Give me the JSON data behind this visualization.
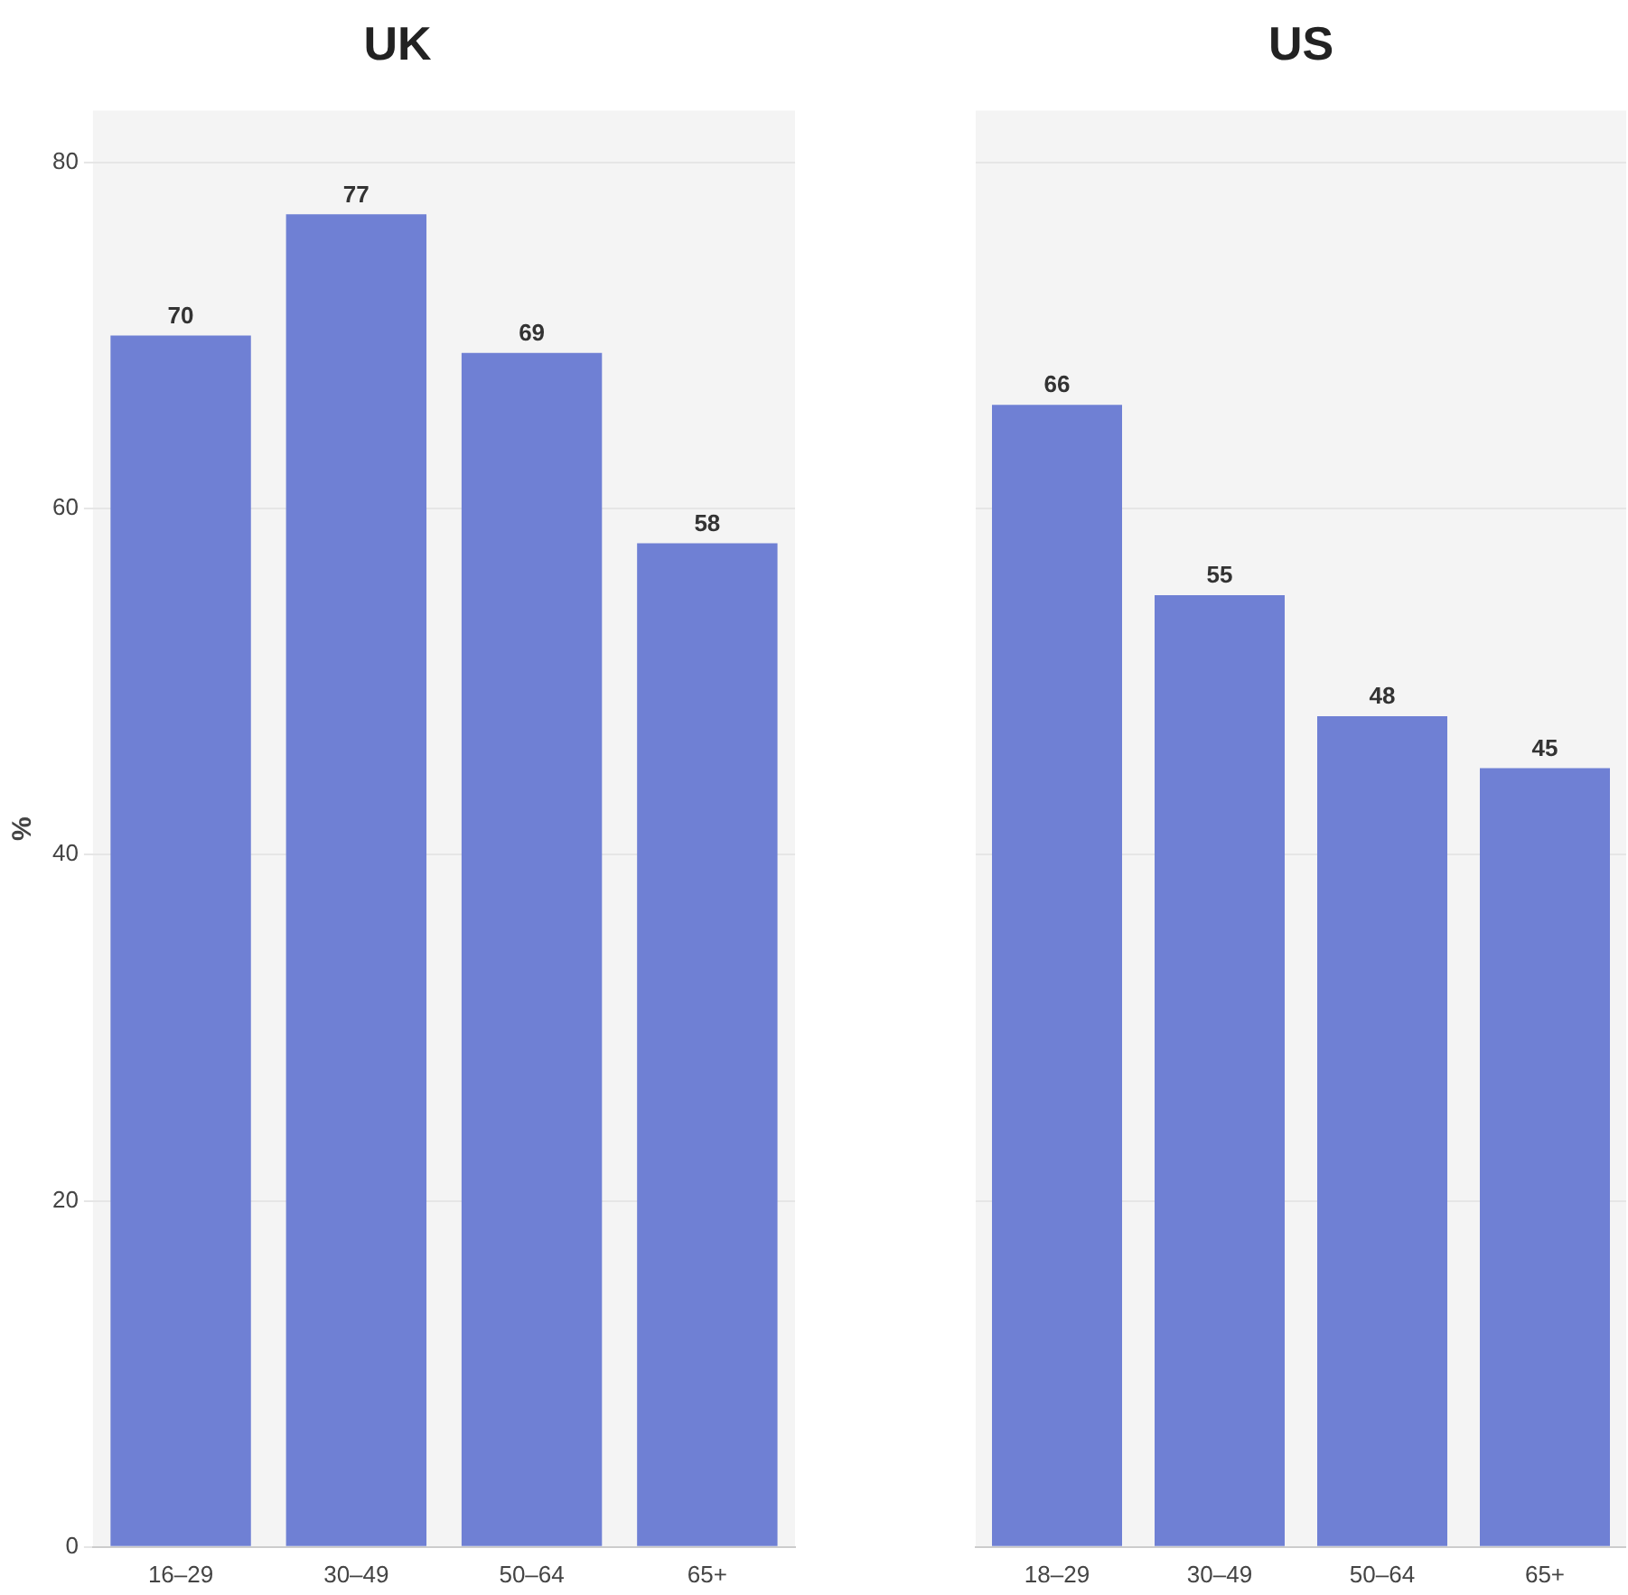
{
  "chart_data": [
    {
      "type": "bar",
      "title": "UK",
      "ylabel": "%",
      "categories": [
        "16–29",
        "30–49",
        "50–64",
        "65+"
      ],
      "values": [
        70,
        77,
        69,
        58
      ],
      "color": "#6f80d4",
      "ylim": [
        0,
        83
      ],
      "yticks": [
        0,
        20,
        40,
        60,
        80
      ],
      "grid": "y",
      "data_labels": true
    },
    {
      "type": "bar",
      "title": "US",
      "categories": [
        "18–29",
        "30–49",
        "50–64",
        "65+"
      ],
      "values": [
        66,
        55,
        48,
        45
      ],
      "color": "#6f80d4",
      "ylim": [
        0,
        83
      ],
      "yticks": [
        0,
        20,
        40,
        60,
        80
      ],
      "grid": "y",
      "data_labels": true,
      "tick_labels": "x"
    }
  ]
}
